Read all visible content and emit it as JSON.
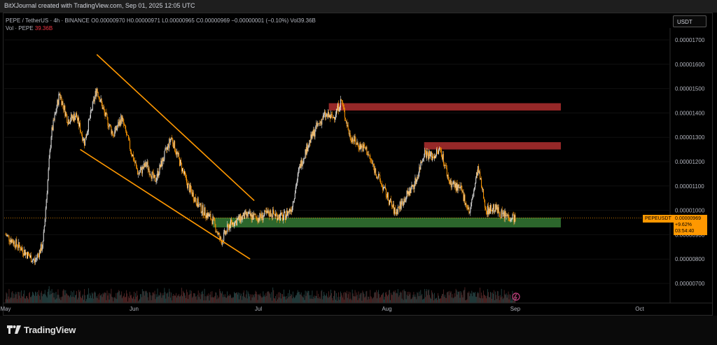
{
  "header": {
    "title": "BitXJournal created with TradingView.com, Sep 01, 2025 12:05 UTC"
  },
  "legend": {
    "line1_prefix": "PEPE / TetherUS · 4h · BINANCE",
    "ohlc": "O0.00000970 H0.00000971 L0.00000965 C0.00000969 −0.00000001 (−0.10%)",
    "vol_inline": "Vol39.36B",
    "line2_label": "Vol · PEPE",
    "line2_value": "39.36B"
  },
  "currency_button": "USDT",
  "price_tag": {
    "symbol": "PEPEUSDT",
    "price": "0.00000969",
    "change": "+9.62%",
    "countdown": "03:54:40"
  },
  "brand": "TradingView",
  "colors": {
    "up": "#e8e8e8",
    "down": "#ff9800",
    "resistance": "#9e2a2a",
    "support": "#2e6b2e",
    "channel": "#ff9800"
  },
  "chart_data": {
    "type": "candlestick",
    "symbol": "PEPE / TetherUS",
    "interval": "4h",
    "exchange": "BINANCE",
    "y_ticks": [
      "0.00000700",
      "0.00000800",
      "0.00000900",
      "0.00001000",
      "0.00001100",
      "0.00001200",
      "0.00001300",
      "0.00001400",
      "0.00001500",
      "0.00001600",
      "0.00001700"
    ],
    "x_ticks": [
      "May",
      "Jun",
      "Jul",
      "Aug",
      "Sep",
      "Oct"
    ],
    "ylim": [
      6.6e-06,
      1.78e-05
    ],
    "close_points": [
      [
        "May 1",
        9e-06
      ],
      [
        "May 5",
        8.4e-06
      ],
      [
        "May 8",
        7.9e-06
      ],
      [
        "May 10",
        8.6e-06
      ],
      [
        "May 12",
        1.31e-05
      ],
      [
        "May 14",
        1.48e-05
      ],
      [
        "May 16",
        1.37e-05
      ],
      [
        "May 18",
        1.39e-05
      ],
      [
        "May 20",
        1.28e-05
      ],
      [
        "May 22",
        1.43e-05
      ],
      [
        "May 23",
        1.5e-05
      ],
      [
        "May 25",
        1.39e-05
      ],
      [
        "May 27",
        1.31e-05
      ],
      [
        "May 29",
        1.38e-05
      ],
      [
        "May 31",
        1.26e-05
      ],
      [
        "Jun 2",
        1.15e-05
      ],
      [
        "Jun 4",
        1.19e-05
      ],
      [
        "Jun 6",
        1.12e-05
      ],
      [
        "Jun 8",
        1.21e-05
      ],
      [
        "Jun 10",
        1.3e-05
      ],
      [
        "Jun 12",
        1.2e-05
      ],
      [
        "Jun 14",
        1.1e-05
      ],
      [
        "Jun 17",
        1.01e-05
      ],
      [
        "Jun 20",
        9.6e-06
      ],
      [
        "Jun 22",
        8.7e-06
      ],
      [
        "Jun 24",
        9.4e-06
      ],
      [
        "Jun 26",
        9.6e-06
      ],
      [
        "Jun 28",
        9.8e-06
      ],
      [
        "Jul 1",
        9.7e-06
      ],
      [
        "Jul 4",
        9.9e-06
      ],
      [
        "Jul 7",
        9.7e-06
      ],
      [
        "Jul 9",
        1.01e-05
      ],
      [
        "Jul 11",
        1.18e-05
      ],
      [
        "Jul 13",
        1.27e-05
      ],
      [
        "Jul 15",
        1.34e-05
      ],
      [
        "Jul 17",
        1.39e-05
      ],
      [
        "Jul 19",
        1.38e-05
      ],
      [
        "Jul 21",
        1.45e-05
      ],
      [
        "Jul 23",
        1.31e-05
      ],
      [
        "Jul 25",
        1.27e-05
      ],
      [
        "Jul 27",
        1.25e-05
      ],
      [
        "Jul 29",
        1.17e-05
      ],
      [
        "Aug 1",
        1.06e-05
      ],
      [
        "Aug 3",
        9.9e-06
      ],
      [
        "Aug 5",
        1.04e-05
      ],
      [
        "Aug 8",
        1.12e-05
      ],
      [
        "Aug 10",
        1.24e-05
      ],
      [
        "Aug 12",
        1.22e-05
      ],
      [
        "Aug 14",
        1.25e-05
      ],
      [
        "Aug 16",
        1.12e-05
      ],
      [
        "Aug 19",
        1.08e-05
      ],
      [
        "Aug 21",
        9.9e-06
      ],
      [
        "Aug 23",
        1.17e-05
      ],
      [
        "Aug 25",
        1e-05
      ],
      [
        "Aug 27",
        1.01e-05
      ],
      [
        "Aug 29",
        9.8e-06
      ],
      [
        "Sep 1",
        9.7e-06
      ]
    ],
    "zones": [
      {
        "name": "resistance-upper",
        "from": "Jul 18",
        "to": "Sep 12",
        "low": 1.41e-05,
        "high": 1.44e-05
      },
      {
        "name": "resistance-lower",
        "from": "Aug 10",
        "to": "Sep 12",
        "low": 1.25e-05,
        "high": 1.28e-05
      },
      {
        "name": "support",
        "from": "Jun 20",
        "to": "Sep 12",
        "low": 9.3e-06,
        "high": 9.7e-06
      }
    ],
    "channel": {
      "upper": [
        [
          "May 23",
          1.64e-05
        ],
        [
          "Jun 30",
          1.04e-05
        ]
      ],
      "lower": [
        [
          "May 19",
          1.25e-05
        ],
        [
          "Jun 29",
          8e-06
        ]
      ]
    },
    "volume_label": "Vol · PEPE"
  }
}
